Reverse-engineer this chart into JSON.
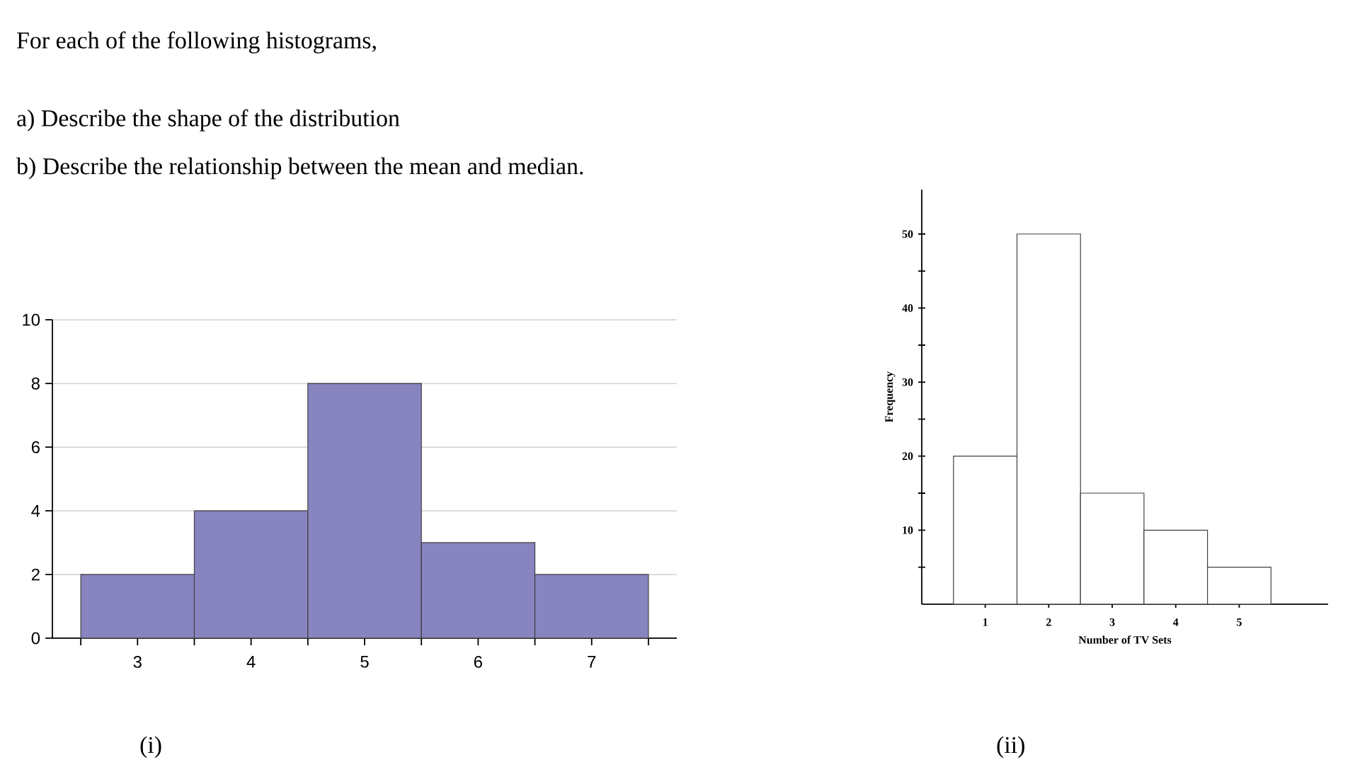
{
  "chart_data": [
    {
      "type": "histogram",
      "title": "For each of the following histograms,",
      "annotations": [
        "a) Describe the shape of the distribution",
        "b) Describe the relationship between the mean and median.",
        "(i)"
      ],
      "bins": [
        2.5,
        3.5,
        4.5,
        5.5,
        6.5,
        7.5
      ],
      "values": [
        2,
        4,
        8,
        3,
        2
      ],
      "color": "#8884c0",
      "xlim": [
        2.25,
        7.75
      ],
      "ylim": [
        0,
        10
      ],
      "xticks": [
        {
          "value": 2.5,
          "label": null
        },
        {
          "value": 3,
          "label": "3"
        },
        {
          "value": 3.5,
          "label": null
        },
        {
          "value": 4,
          "label": "4"
        },
        {
          "value": 4.5,
          "label": null
        },
        {
          "value": 5,
          "label": "5"
        },
        {
          "value": 5.5,
          "label": null
        },
        {
          "value": 6,
          "label": "6"
        },
        {
          "value": 6.5,
          "label": null
        },
        {
          "value": 7,
          "label": "7"
        },
        {
          "value": 7.5,
          "label": null
        }
      ],
      "yticks": [
        0,
        2,
        4,
        6,
        8,
        10
      ],
      "grid": "y"
    },
    {
      "type": "histogram",
      "xlabel": "Number of TV Sets",
      "ylabel": "Frequency",
      "annotations": [
        "(ii)"
      ],
      "bins": [
        0.5,
        1.5,
        2.5,
        3.5,
        4.5,
        5.5
      ],
      "values": [
        20,
        50,
        15,
        10,
        5
      ],
      "color": "#ffffff",
      "xlim": [
        0,
        6.4
      ],
      "ylim": [
        0,
        56
      ],
      "xticks": [
        1,
        2,
        3,
        4,
        5
      ],
      "yticks": [
        {
          "value": 5,
          "label": null
        },
        10,
        {
          "value": 15,
          "label": null
        },
        20,
        {
          "value": 25,
          "label": null
        },
        30,
        {
          "value": 35,
          "label": null
        },
        40,
        {
          "value": 45,
          "label": null
        },
        50
      ]
    }
  ]
}
